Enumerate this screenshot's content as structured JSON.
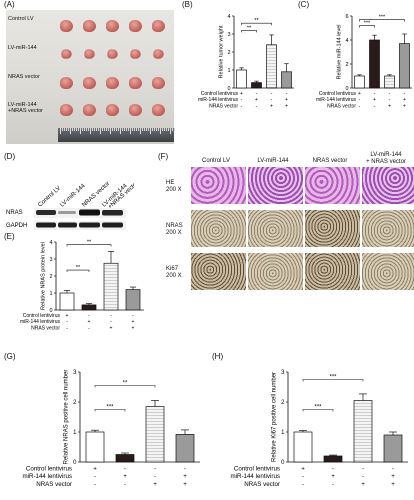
{
  "panels": {
    "a": {
      "label": "(A)",
      "rows": [
        "Control LV",
        "LV-miR-144",
        "NRAS vector",
        "LV-miR-144\n+NRAS vector"
      ]
    },
    "b": {
      "label": "(B)",
      "ylabel": "Relative tumor weight",
      "sig": [
        "**",
        "**"
      ]
    },
    "c": {
      "label": "(C)",
      "ylabel": "Relative miR-144 level",
      "sig": [
        "***",
        "***"
      ]
    },
    "d": {
      "label": "(D)",
      "cols": [
        "Control LV",
        "LV-miR-144",
        "NRAS vector",
        "LV-miR-144\n+NRAS vector"
      ],
      "rows": [
        "NRAS",
        "GAPDH"
      ]
    },
    "e": {
      "label": "(E)",
      "ylabel": "Relative NRAS protein level",
      "sig": [
        "**",
        "**"
      ]
    },
    "f": {
      "label": "(F)",
      "cols": [
        "Control LV",
        "LV-miR-144",
        "NRAS vector",
        "LV-miR-144\n+ NRAS vector"
      ],
      "rows": [
        "HE\n200 X",
        "NRAS\n200 X",
        "Ki67\n200 X"
      ]
    },
    "g": {
      "label": "(G)",
      "ylabel": "Relative NRAS positive cell number",
      "sig": [
        "***",
        "**"
      ]
    },
    "h": {
      "label": "(H)",
      "ylabel": "Relative Ki67 positive cell number",
      "sig": [
        "***",
        "***"
      ]
    }
  },
  "treatment_table": {
    "rows_small": [
      "Control lentivirus",
      "miR-144 lentivirus",
      "NRAS vector"
    ],
    "rows_ki": [
      "Control lentivirus",
      "miR-144 lentivirus",
      "NRAS vector"
    ],
    "signs": [
      [
        "+",
        "-",
        "-",
        "-"
      ],
      [
        "-",
        "+",
        "-",
        "+"
      ],
      [
        "-",
        "-",
        "+",
        "+"
      ]
    ]
  },
  "chart_data": [
    {
      "id": "B",
      "type": "bar",
      "categories": [
        "1",
        "2",
        "3",
        "4"
      ],
      "values": [
        1.0,
        0.3,
        2.4,
        0.9
      ],
      "errors": [
        0.12,
        0.08,
        0.55,
        0.45
      ],
      "ylim": [
        0,
        4
      ],
      "ticks": [
        0,
        1,
        2,
        3,
        4
      ],
      "ylabel": "Relative tumor weight"
    },
    {
      "id": "C",
      "type": "bar",
      "categories": [
        "1",
        "2",
        "3",
        "4"
      ],
      "values": [
        1.0,
        4.0,
        1.0,
        3.7
      ],
      "errors": [
        0.1,
        0.4,
        0.1,
        0.8
      ],
      "ylim": [
        0,
        6
      ],
      "ticks": [
        0,
        2,
        4,
        6
      ],
      "ylabel": "Relative miR-144 level"
    },
    {
      "id": "E",
      "type": "bar",
      "categories": [
        "1",
        "2",
        "3",
        "4"
      ],
      "values": [
        1.0,
        0.3,
        2.75,
        1.2
      ],
      "errors": [
        0.15,
        0.08,
        0.7,
        0.15
      ],
      "ylim": [
        0,
        4
      ],
      "ticks": [
        0,
        1,
        2,
        3,
        4
      ],
      "ylabel": "Relative NRAS protein level"
    },
    {
      "id": "G",
      "type": "bar",
      "categories": [
        "1",
        "2",
        "3",
        "4"
      ],
      "values": [
        1.0,
        0.25,
        1.85,
        0.92
      ],
      "errors": [
        0.06,
        0.05,
        0.2,
        0.15
      ],
      "ylim": [
        0,
        3
      ],
      "ticks": [
        0,
        1,
        2,
        3
      ],
      "ylabel": "Relative NRAS positive cell number"
    },
    {
      "id": "H",
      "type": "bar",
      "categories": [
        "1",
        "2",
        "3",
        "4"
      ],
      "values": [
        1.0,
        0.2,
        2.05,
        0.9
      ],
      "errors": [
        0.05,
        0.03,
        0.22,
        0.1
      ],
      "ylim": [
        0,
        3
      ],
      "ticks": [
        0,
        1,
        2,
        3
      ],
      "ylabel": "Relative Ki67 positive cell number"
    }
  ]
}
